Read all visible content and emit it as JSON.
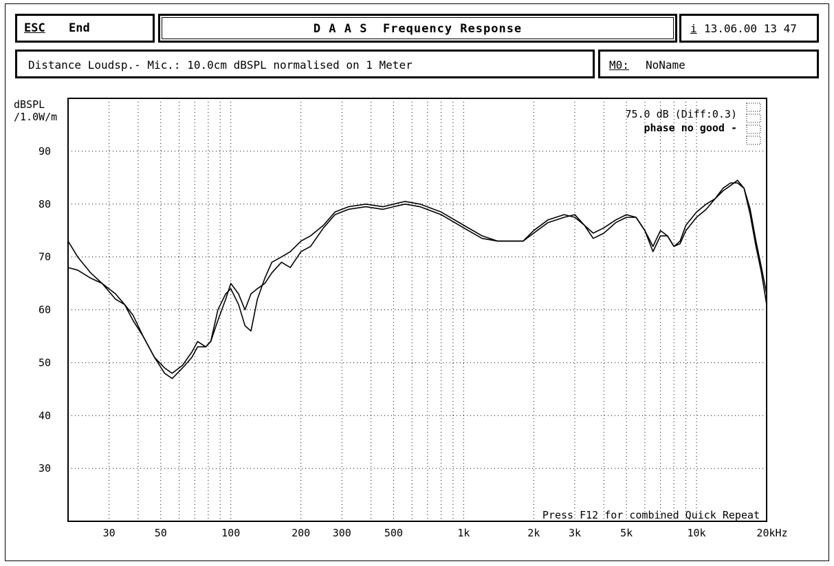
{
  "header": {
    "esc_label": "ESC",
    "end_label": "End",
    "title": "D A A S  Frequency Response",
    "info_icon": "i",
    "date": "13.06.00 13 47"
  },
  "info": {
    "text": "Distance Loudsp.- Mic.: 10.0cm dBSPL normalised on 1 Meter",
    "m_label": "M0:",
    "m_name": "NoName"
  },
  "readout": {
    "level": "75.0 dB (Diff:0.3)",
    "phase": "phase no good -"
  },
  "footer_hint": "Press F12 for combined Quick Repeat",
  "colors": {
    "foreground": "#000000",
    "background": "#ffffff"
  },
  "chart_data": {
    "type": "line",
    "ylabel": "dBSPL /1.0W/m",
    "x_scale": "log",
    "xlim": [
      20,
      20000
    ],
    "ylim": [
      20,
      100
    ],
    "grid": true,
    "x_tick_labels": [
      {
        "value": 30,
        "label": "30"
      },
      {
        "value": 50,
        "label": "50"
      },
      {
        "value": 100,
        "label": "100"
      },
      {
        "value": 200,
        "label": "200"
      },
      {
        "value": 300,
        "label": "300"
      },
      {
        "value": 500,
        "label": "500"
      },
      {
        "value": 1000,
        "label": "1k"
      },
      {
        "value": 2000,
        "label": "2k"
      },
      {
        "value": 3000,
        "label": "3k"
      },
      {
        "value": 5000,
        "label": "5k"
      },
      {
        "value": 10000,
        "label": "10k"
      },
      {
        "value": 20000,
        "label": "20kHz"
      }
    ],
    "y_tick_labels": [
      {
        "value": 30,
        "label": "30"
      },
      {
        "value": 40,
        "label": "40"
      },
      {
        "value": 50,
        "label": "50"
      },
      {
        "value": 60,
        "label": "60"
      },
      {
        "value": 70,
        "label": "70"
      },
      {
        "value": 80,
        "label": "80"
      },
      {
        "value": 90,
        "label": "90"
      }
    ],
    "series": [
      {
        "points": [
          [
            20,
            73
          ],
          [
            22,
            70
          ],
          [
            25,
            67
          ],
          [
            28,
            65
          ],
          [
            32,
            62
          ],
          [
            35,
            61
          ],
          [
            38,
            58
          ],
          [
            42,
            55
          ],
          [
            47,
            51
          ],
          [
            52,
            48
          ],
          [
            56,
            47
          ],
          [
            62,
            49
          ],
          [
            68,
            51
          ],
          [
            72,
            53
          ],
          [
            78,
            53
          ],
          [
            82,
            54
          ],
          [
            88,
            60
          ],
          [
            95,
            63
          ],
          [
            100,
            64
          ],
          [
            108,
            61
          ],
          [
            115,
            57
          ],
          [
            122,
            56
          ],
          [
            130,
            62
          ],
          [
            140,
            66
          ],
          [
            150,
            69
          ],
          [
            165,
            70
          ],
          [
            180,
            71
          ],
          [
            200,
            73
          ],
          [
            220,
            74
          ],
          [
            250,
            76
          ],
          [
            280,
            78.5
          ],
          [
            320,
            79.5
          ],
          [
            380,
            80
          ],
          [
            450,
            79.5
          ],
          [
            500,
            80
          ],
          [
            560,
            80.5
          ],
          [
            650,
            80
          ],
          [
            800,
            78.5
          ],
          [
            1000,
            76
          ],
          [
            1200,
            74
          ],
          [
            1400,
            73
          ],
          [
            1600,
            73
          ],
          [
            1800,
            73
          ],
          [
            2000,
            75
          ],
          [
            2300,
            77
          ],
          [
            2700,
            78
          ],
          [
            3000,
            77.5
          ],
          [
            3300,
            76
          ],
          [
            3600,
            73.5
          ],
          [
            4000,
            74.5
          ],
          [
            4500,
            76.5
          ],
          [
            5000,
            77.5
          ],
          [
            5500,
            77.5
          ],
          [
            6000,
            75
          ],
          [
            6500,
            71
          ],
          [
            7000,
            74
          ],
          [
            7500,
            74
          ],
          [
            8000,
            72
          ],
          [
            8500,
            73
          ],
          [
            9000,
            76
          ],
          [
            10000,
            78.5
          ],
          [
            11000,
            80
          ],
          [
            12000,
            81
          ],
          [
            13000,
            83
          ],
          [
            14000,
            84
          ],
          [
            15000,
            84
          ],
          [
            16000,
            83
          ],
          [
            17000,
            79
          ],
          [
            18000,
            73
          ],
          [
            19000,
            68
          ],
          [
            20000,
            63
          ]
        ]
      },
      {
        "points": [
          [
            20,
            68
          ],
          [
            22,
            67.5
          ],
          [
            25,
            66
          ],
          [
            28,
            65
          ],
          [
            32,
            63
          ],
          [
            35,
            61
          ],
          [
            38,
            59
          ],
          [
            42,
            55
          ],
          [
            47,
            51
          ],
          [
            52,
            49
          ],
          [
            56,
            48
          ],
          [
            62,
            49.5
          ],
          [
            68,
            52
          ],
          [
            72,
            54
          ],
          [
            78,
            53
          ],
          [
            82,
            54
          ],
          [
            88,
            58
          ],
          [
            95,
            62
          ],
          [
            100,
            65
          ],
          [
            108,
            63
          ],
          [
            115,
            60
          ],
          [
            122,
            63
          ],
          [
            130,
            64
          ],
          [
            140,
            65
          ],
          [
            150,
            67
          ],
          [
            165,
            69
          ],
          [
            180,
            68
          ],
          [
            200,
            71
          ],
          [
            220,
            72
          ],
          [
            250,
            75.5
          ],
          [
            280,
            78
          ],
          [
            320,
            79
          ],
          [
            380,
            79.5
          ],
          [
            450,
            79
          ],
          [
            500,
            79.5
          ],
          [
            560,
            80
          ],
          [
            650,
            79.5
          ],
          [
            800,
            78
          ],
          [
            1000,
            75.5
          ],
          [
            1200,
            73.5
          ],
          [
            1400,
            73
          ],
          [
            1600,
            73
          ],
          [
            1800,
            73
          ],
          [
            2000,
            74.5
          ],
          [
            2300,
            76.5
          ],
          [
            2700,
            77.5
          ],
          [
            3000,
            78
          ],
          [
            3300,
            76
          ],
          [
            3600,
            74.5
          ],
          [
            4000,
            75.5
          ],
          [
            4500,
            77
          ],
          [
            5000,
            78
          ],
          [
            5500,
            77.5
          ],
          [
            6000,
            75
          ],
          [
            6500,
            72
          ],
          [
            7000,
            75
          ],
          [
            7500,
            74
          ],
          [
            8000,
            72
          ],
          [
            8500,
            72.5
          ],
          [
            9000,
            75
          ],
          [
            10000,
            77.5
          ],
          [
            11000,
            79
          ],
          [
            12000,
            81
          ],
          [
            13000,
            82.5
          ],
          [
            14000,
            83.5
          ],
          [
            15000,
            84.5
          ],
          [
            16000,
            83
          ],
          [
            17000,
            78
          ],
          [
            18000,
            72
          ],
          [
            19000,
            67
          ],
          [
            20000,
            61
          ]
        ]
      }
    ]
  }
}
